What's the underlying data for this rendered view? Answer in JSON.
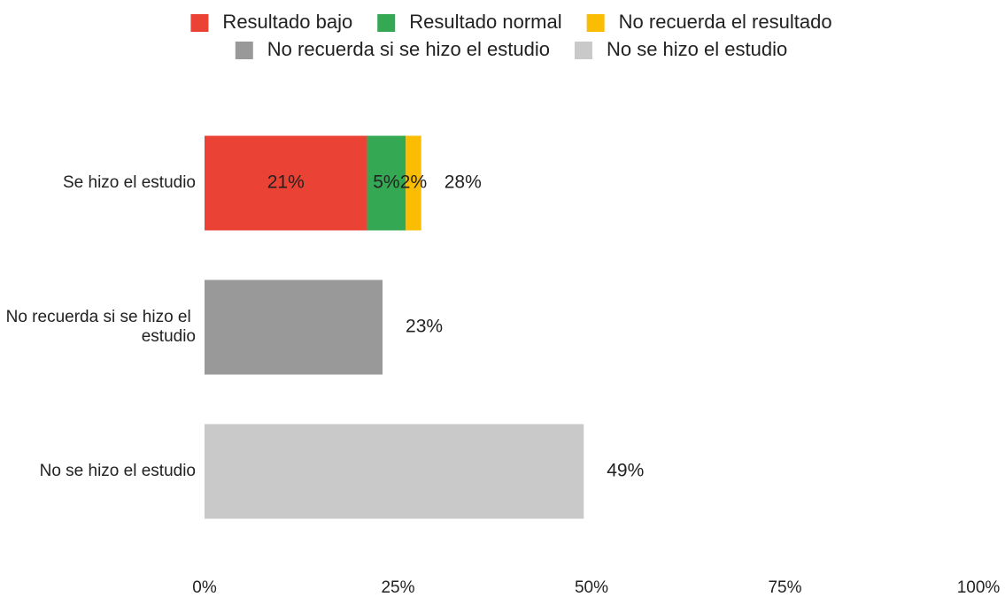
{
  "chart_data": {
    "type": "stacked_barh",
    "categories": [
      "Se hizo el estudio",
      "No recuerda si se hizo el estudio",
      "No se hizo el estudio"
    ],
    "series": [
      {
        "name": "Resultado bajo",
        "color": "#ea4335",
        "values": [
          21,
          null,
          null
        ],
        "value_labels": [
          "21%",
          null,
          null
        ]
      },
      {
        "name": "Resultado normal",
        "color": "#34a853",
        "values": [
          5,
          null,
          null
        ],
        "value_labels": [
          "5%",
          null,
          null
        ]
      },
      {
        "name": "No recuerda el resultado",
        "color": "#fbbc04",
        "values": [
          2,
          null,
          null
        ],
        "value_labels": [
          "2%",
          null,
          null
        ]
      },
      {
        "name": "No recuerda si se hizo el estudio",
        "color": "#999999",
        "values": [
          null,
          23,
          null
        ],
        "value_labels": [
          null,
          null,
          null
        ]
      },
      {
        "name": "No se hizo el estudio",
        "color": "#c9c9c9",
        "values": [
          null,
          null,
          49
        ],
        "value_labels": [
          null,
          null,
          null
        ]
      }
    ],
    "totals": [
      28,
      23,
      49
    ],
    "total_labels": [
      "28%",
      "23%",
      "49%"
    ],
    "xlim": [
      0,
      100
    ],
    "xticks": [
      {
        "value": 0,
        "label": "0%"
      },
      {
        "value": 25,
        "label": "25%"
      },
      {
        "value": 50,
        "label": "50%"
      },
      {
        "value": 75,
        "label": "75%"
      },
      {
        "value": 100,
        "label": "100%"
      }
    ],
    "grid": false,
    "legend": "top"
  }
}
